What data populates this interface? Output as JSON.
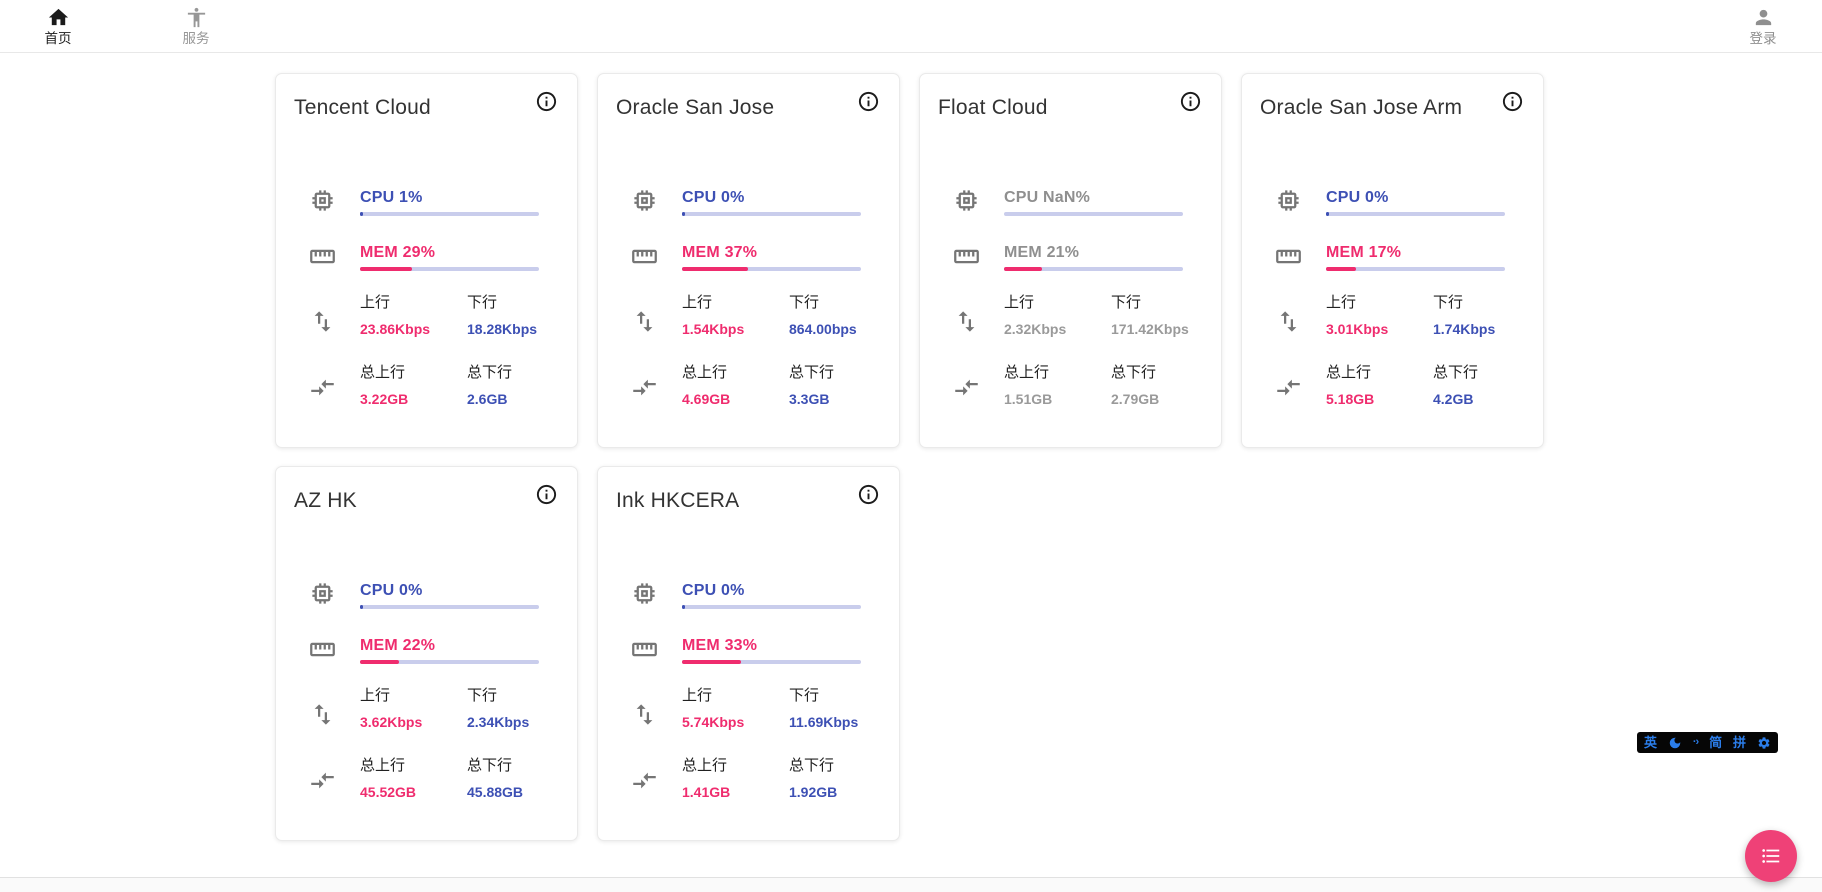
{
  "navbar": {
    "home": {
      "label": "首页"
    },
    "services": {
      "label": "服务"
    },
    "login": {
      "label": "登录"
    }
  },
  "card_labels": {
    "upload": "上行",
    "download": "下行",
    "total_upload": "总上行",
    "total_download": "总下行"
  },
  "servers": [
    {
      "name": "Tencent Cloud",
      "cpu_label": "CPU 1%",
      "cpu_pct": 1,
      "mem_label": "MEM 29%",
      "mem_pct": 29,
      "upload": "23.86Kbps",
      "download": "18.28Kbps",
      "total_upload": "3.22GB",
      "total_download": "2.6GB",
      "offline": false
    },
    {
      "name": "Oracle San Jose",
      "cpu_label": "CPU 0%",
      "cpu_pct": 0,
      "mem_label": "MEM 37%",
      "mem_pct": 37,
      "upload": "1.54Kbps",
      "download": "864.00bps",
      "total_upload": "4.69GB",
      "total_download": "3.3GB",
      "offline": false
    },
    {
      "name": "Float Cloud",
      "cpu_label": "CPU NaN%",
      "cpu_pct": null,
      "mem_label": "MEM 21%",
      "mem_pct": 21,
      "upload": "2.32Kbps",
      "download": "171.42Kbps",
      "total_upload": "1.51GB",
      "total_download": "2.79GB",
      "offline": true
    },
    {
      "name": "Oracle San Jose Arm",
      "cpu_label": "CPU 0%",
      "cpu_pct": 0,
      "mem_label": "MEM 17%",
      "mem_pct": 17,
      "upload": "3.01Kbps",
      "download": "1.74Kbps",
      "total_upload": "5.18GB",
      "total_download": "4.2GB",
      "offline": false
    },
    {
      "name": "AZ HK",
      "cpu_label": "CPU 0%",
      "cpu_pct": 0,
      "mem_label": "MEM 22%",
      "mem_pct": 22,
      "upload": "3.62Kbps",
      "download": "2.34Kbps",
      "total_upload": "45.52GB",
      "total_download": "45.88GB",
      "offline": false
    },
    {
      "name": "Ink HKCERA",
      "cpu_label": "CPU 0%",
      "cpu_pct": 0,
      "mem_label": "MEM 33%",
      "mem_pct": 33,
      "upload": "5.74Kbps",
      "download": "11.69Kbps",
      "total_upload": "1.41GB",
      "total_download": "1.92GB",
      "offline": false
    }
  ],
  "ime_bar": {
    "english": "英",
    "punctuation": "·›",
    "simplified": "简",
    "pinyin": "拼"
  },
  "colors": {
    "accent_indigo": "#3d50b4",
    "accent_pink": "#ef2c6e",
    "fab_pink": "#ef4177",
    "bar_track": "#c9cdec",
    "offline_gray": "#9a9a9a"
  }
}
